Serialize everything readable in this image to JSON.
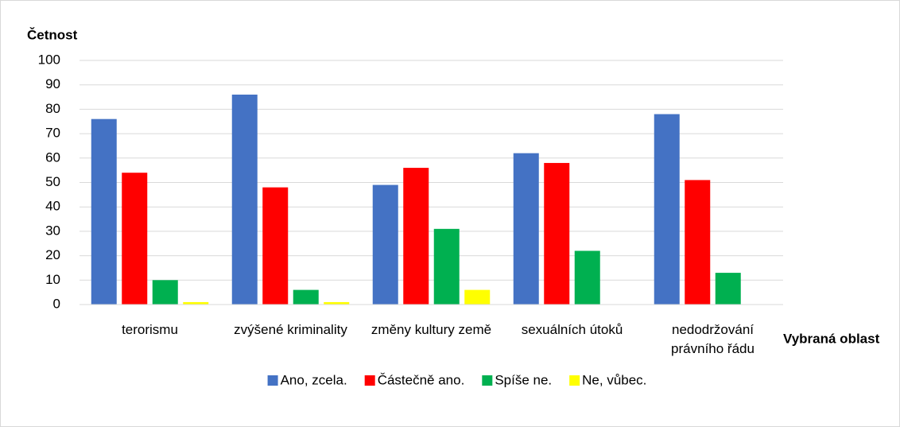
{
  "chart_data": {
    "type": "bar",
    "y_label": "Četnost",
    "x_label": "Vybraná oblast",
    "categories": [
      "terorismu",
      "zvýšené kriminality",
      "změny kultury země",
      "sexuálních útoků",
      "nedodržování právního řádu"
    ],
    "series": [
      {
        "name": "Ano, zcela.",
        "color": "#4472c4",
        "values": [
          76,
          86,
          49,
          62,
          78
        ]
      },
      {
        "name": "Částečně ano.",
        "color": "#ff0000",
        "values": [
          54,
          48,
          56,
          58,
          51
        ]
      },
      {
        "name": "Spíše ne.",
        "color": "#00b050",
        "values": [
          10,
          6,
          31,
          22,
          13
        ]
      },
      {
        "name": "Ne, vůbec.",
        "color": "#ffff00",
        "values": [
          1,
          1,
          6,
          0,
          0
        ]
      }
    ],
    "ylim": [
      0,
      100
    ],
    "yticks": [
      0,
      10,
      20,
      30,
      40,
      50,
      60,
      70,
      80,
      90,
      100
    ],
    "grid": true,
    "legend": "bottom"
  }
}
